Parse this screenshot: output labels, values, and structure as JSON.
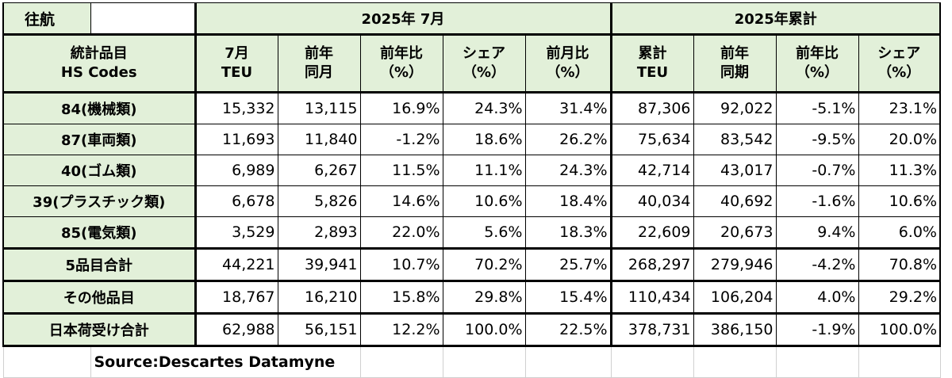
{
  "header": {
    "corner_label": "往航",
    "group_2025_july": "2025年 7月",
    "group_2025_cumulative": "2025年累計"
  },
  "columns": {
    "item_line1": "統計品目",
    "item_line2": "HS Codes",
    "july_teu_line1": "7月",
    "july_teu_line2": "TEU",
    "prev_year_month_line1": "前年",
    "prev_year_month_line2": "同月",
    "yoy_line1": "前年比",
    "yoy_line2": "（%）",
    "share_line1": "シェア",
    "share_line2": "（%）",
    "mom_line1": "前月比",
    "mom_line2": "（%）",
    "cum_line1": "累計",
    "cum_line2": "TEU",
    "prev_year_period_line1": "前年",
    "prev_year_period_line2": "同期",
    "cum_yoy_line1": "前年比",
    "cum_yoy_line2": "（%）",
    "cum_share_line1": "シェア",
    "cum_share_line2": "（%）"
  },
  "rows": [
    {
      "label": "84(機械類)",
      "teu": "15,332",
      "prev": "13,115",
      "yoy": "16.9%",
      "share": "24.3%",
      "mom": "31.4%",
      "cum": "87,306",
      "cum_prev": "92,022",
      "cum_yoy": "-5.1%",
      "cum_share": "23.1%"
    },
    {
      "label": "87(車両類)",
      "teu": "11,693",
      "prev": "11,840",
      "yoy": "-1.2%",
      "share": "18.6%",
      "mom": "26.2%",
      "cum": "75,634",
      "cum_prev": "83,542",
      "cum_yoy": "-9.5%",
      "cum_share": "20.0%"
    },
    {
      "label": "40(ゴム類)",
      "teu": "6,989",
      "prev": "6,267",
      "yoy": "11.5%",
      "share": "11.1%",
      "mom": "24.3%",
      "cum": "42,714",
      "cum_prev": "43,017",
      "cum_yoy": "-0.7%",
      "cum_share": "11.3%"
    },
    {
      "label": "39(プラスチック類)",
      "teu": "6,678",
      "prev": "5,826",
      "yoy": "14.6%",
      "share": "10.6%",
      "mom": "18.4%",
      "cum": "40,034",
      "cum_prev": "40,692",
      "cum_yoy": "-1.6%",
      "cum_share": "10.6%"
    },
    {
      "label": "85(電気類)",
      "teu": "3,529",
      "prev": "2,893",
      "yoy": "22.0%",
      "share": "5.6%",
      "mom": "18.3%",
      "cum": "22,609",
      "cum_prev": "20,673",
      "cum_yoy": "9.4%",
      "cum_share": "6.0%"
    },
    {
      "label": "5品目合計",
      "teu": "44,221",
      "prev": "39,941",
      "yoy": "10.7%",
      "share": "70.2%",
      "mom": "25.7%",
      "cum": "268,297",
      "cum_prev": "279,946",
      "cum_yoy": "-4.2%",
      "cum_share": "70.8%"
    },
    {
      "label": "その他品目",
      "teu": "18,767",
      "prev": "16,210",
      "yoy": "15.8%",
      "share": "29.8%",
      "mom": "15.4%",
      "cum": "110,434",
      "cum_prev": "106,204",
      "cum_yoy": "4.0%",
      "cum_share": "29.2%"
    },
    {
      "label": "日本荷受け合計",
      "teu": "62,988",
      "prev": "56,151",
      "yoy": "12.2%",
      "share": "100.0%",
      "mom": "22.5%",
      "cum": "378,731",
      "cum_prev": "386,150",
      "cum_yoy": "-1.9%",
      "cum_share": "100.0%"
    }
  ],
  "source_note": "Source:Descartes  Datamyne"
}
